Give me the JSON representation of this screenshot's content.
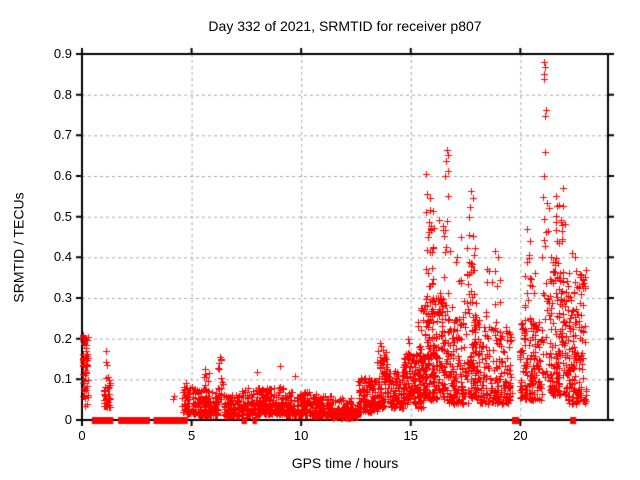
{
  "title": "Day 332 of 2021, SRMTID for receiver p807",
  "axes": {
    "xlabel": "GPS time / hours",
    "ylabel": "SRMTID / TECUs",
    "xlim": [
      0,
      24
    ],
    "ylim": [
      0,
      0.9
    ],
    "xtick_values": [
      0,
      5,
      10,
      15,
      20
    ],
    "xtick_labels": [
      "0",
      "5",
      "10",
      "15",
      "20"
    ],
    "ytick_values": [
      0,
      0.1,
      0.2,
      0.3,
      0.4,
      0.5,
      0.6,
      0.7,
      0.8,
      0.9
    ],
    "ytick_labels": [
      "0",
      "0.1",
      "0.2",
      "0.3",
      "0.4",
      "0.5",
      "0.6",
      "0.7",
      "0.8",
      "0.9"
    ],
    "grid": true
  },
  "colors": {
    "marker": "#ff0000",
    "grid": "#a8a8a8",
    "border": "#000000",
    "background": "#ffffff",
    "text": "#000000"
  },
  "chart_data": {
    "type": "scatter",
    "marker": "plus",
    "legend": null,
    "seed": 1332,
    "x_unit": "hours",
    "y_unit": "TECUs",
    "clusters": [
      {
        "x0": 0.02,
        "x1": 0.28,
        "n": 55,
        "y0": 0.03,
        "y1": 0.21,
        "skew": 1.0
      },
      {
        "x0": 0.98,
        "x1": 1.28,
        "n": 34,
        "y0": 0.03,
        "y1": 0.11,
        "skew": 1.3
      },
      {
        "x0": 4.55,
        "x1": 5.2,
        "n": 70,
        "y0": 0.015,
        "y1": 0.09,
        "skew": 1.6
      },
      {
        "x0": 5.2,
        "x1": 6.2,
        "n": 150,
        "y0": 0.012,
        "y1": 0.075,
        "skew": 2.0
      },
      {
        "x0": 5.5,
        "x1": 5.85,
        "n": 10,
        "y0": 0.07,
        "y1": 0.12,
        "skew": 1.0
      },
      {
        "x0": 6.2,
        "x1": 6.45,
        "n": 16,
        "y0": 0.05,
        "y1": 0.155,
        "skew": 1.1
      },
      {
        "x0": 6.45,
        "x1": 7.3,
        "n": 110,
        "y0": 0.01,
        "y1": 0.065,
        "skew": 2.0
      },
      {
        "x0": 7.3,
        "x1": 8.15,
        "n": 95,
        "y0": 0.012,
        "y1": 0.08,
        "skew": 1.8
      },
      {
        "x0": 8.15,
        "x1": 9.25,
        "n": 140,
        "y0": 0.015,
        "y1": 0.08,
        "skew": 1.8
      },
      {
        "x0": 9.25,
        "x1": 10.45,
        "n": 150,
        "y0": 0.012,
        "y1": 0.07,
        "skew": 2.0
      },
      {
        "x0": 10.45,
        "x1": 11.35,
        "n": 120,
        "y0": 0.01,
        "y1": 0.065,
        "skew": 2.0
      },
      {
        "x0": 11.35,
        "x1": 12.55,
        "n": 140,
        "y0": 0.006,
        "y1": 0.055,
        "skew": 2.0
      },
      {
        "x0": 12.55,
        "x1": 13.45,
        "n": 120,
        "y0": 0.02,
        "y1": 0.105,
        "skew": 1.7
      },
      {
        "x0": 13.45,
        "x1": 13.95,
        "n": 75,
        "y0": 0.03,
        "y1": 0.175,
        "skew": 1.4
      },
      {
        "x0": 13.95,
        "x1": 14.65,
        "n": 95,
        "y0": 0.03,
        "y1": 0.125,
        "skew": 1.6
      },
      {
        "x0": 14.65,
        "x1": 15.25,
        "n": 95,
        "y0": 0.04,
        "y1": 0.165,
        "skew": 1.4
      },
      {
        "x0": 15.25,
        "x1": 15.62,
        "n": 75,
        "y0": 0.03,
        "y1": 0.19,
        "skew": 1.3
      },
      {
        "x0": 15.3,
        "x1": 15.6,
        "n": 8,
        "y0": 0.2,
        "y1": 0.28,
        "skew": 1.0
      },
      {
        "x0": 15.62,
        "x1": 16.15,
        "n": 120,
        "y0": 0.05,
        "y1": 0.3,
        "skew": 1.3
      },
      {
        "x0": 15.68,
        "x1": 16.05,
        "n": 26,
        "y0": 0.3,
        "y1": 0.52,
        "skew": 1.0
      },
      {
        "x0": 16.15,
        "x1": 16.65,
        "n": 95,
        "y0": 0.05,
        "y1": 0.3,
        "skew": 1.4
      },
      {
        "x0": 16.3,
        "x1": 16.75,
        "n": 12,
        "y0": 0.3,
        "y1": 0.5,
        "skew": 1.0
      },
      {
        "x0": 16.65,
        "x1": 17.6,
        "n": 130,
        "y0": 0.04,
        "y1": 0.25,
        "skew": 1.6
      },
      {
        "x0": 16.8,
        "x1": 17.5,
        "n": 10,
        "y0": 0.25,
        "y1": 0.42,
        "skew": 1.0
      },
      {
        "x0": 17.6,
        "x1": 18.15,
        "n": 85,
        "y0": 0.05,
        "y1": 0.25,
        "skew": 1.2
      },
      {
        "x0": 17.55,
        "x1": 17.98,
        "n": 30,
        "y0": 0.25,
        "y1": 0.46,
        "skew": 1.0
      },
      {
        "x0": 18.15,
        "x1": 19.6,
        "n": 170,
        "y0": 0.04,
        "y1": 0.23,
        "skew": 1.6
      },
      {
        "x0": 18.4,
        "x1": 19.1,
        "n": 12,
        "y0": 0.24,
        "y1": 0.38,
        "skew": 1.0
      },
      {
        "x0": 19.95,
        "x1": 21.0,
        "n": 150,
        "y0": 0.05,
        "y1": 0.25,
        "skew": 1.5
      },
      {
        "x0": 20.15,
        "x1": 20.7,
        "n": 14,
        "y0": 0.25,
        "y1": 0.43,
        "skew": 1.0
      },
      {
        "x0": 21.0,
        "x1": 21.3,
        "n": 30,
        "y0": 0.1,
        "y1": 0.55,
        "skew": 1.3
      },
      {
        "x0": 21.3,
        "x1": 22.15,
        "n": 150,
        "y0": 0.06,
        "y1": 0.4,
        "skew": 1.6
      },
      {
        "x0": 21.6,
        "x1": 22.05,
        "n": 16,
        "y0": 0.43,
        "y1": 0.555,
        "skew": 1.0
      },
      {
        "x0": 22.15,
        "x1": 23.0,
        "n": 150,
        "y0": 0.04,
        "y1": 0.38,
        "skew": 1.7
      }
    ],
    "highlight_points": [
      [
        1.08,
        0.17
      ],
      [
        1.11,
        0.142
      ],
      [
        1.13,
        0.135
      ],
      [
        4.15,
        0.052
      ],
      [
        4.2,
        0.058
      ],
      [
        5.6,
        0.125
      ],
      [
        6.3,
        0.155
      ],
      [
        6.33,
        0.148
      ],
      [
        8.0,
        0.118
      ],
      [
        9.05,
        0.132
      ],
      [
        9.7,
        0.108
      ],
      [
        13.58,
        0.19
      ],
      [
        13.62,
        0.183
      ],
      [
        14.88,
        0.2
      ],
      [
        14.92,
        0.19
      ],
      [
        15.7,
        0.605
      ],
      [
        15.74,
        0.555
      ],
      [
        15.88,
        0.545
      ],
      [
        16.65,
        0.665
      ],
      [
        16.7,
        0.652
      ],
      [
        16.62,
        0.638
      ],
      [
        16.72,
        0.612
      ],
      [
        16.55,
        0.6
      ],
      [
        16.68,
        0.552
      ],
      [
        17.3,
        0.45
      ],
      [
        17.76,
        0.562
      ],
      [
        17.82,
        0.545
      ],
      [
        17.7,
        0.525
      ],
      [
        17.65,
        0.5
      ],
      [
        18.85,
        0.415
      ],
      [
        19.0,
        0.4
      ],
      [
        20.3,
        0.47
      ],
      [
        20.45,
        0.44
      ],
      [
        21.08,
        0.88
      ],
      [
        21.12,
        0.868
      ],
      [
        21.1,
        0.852
      ],
      [
        21.06,
        0.838
      ],
      [
        21.15,
        0.762
      ],
      [
        21.11,
        0.747
      ],
      [
        21.13,
        0.658
      ],
      [
        21.09,
        0.6
      ],
      [
        21.95,
        0.57
      ],
      [
        22.35,
        0.41
      ],
      [
        22.5,
        0.4
      ]
    ],
    "zero_value_runs": [
      [
        0.45,
        1.43
      ],
      [
        1.65,
        3.1
      ],
      [
        3.26,
        4.82
      ],
      [
        7.28,
        7.52
      ],
      [
        7.78,
        7.98
      ],
      [
        19.62,
        19.95
      ],
      [
        22.27,
        22.55
      ]
    ]
  }
}
